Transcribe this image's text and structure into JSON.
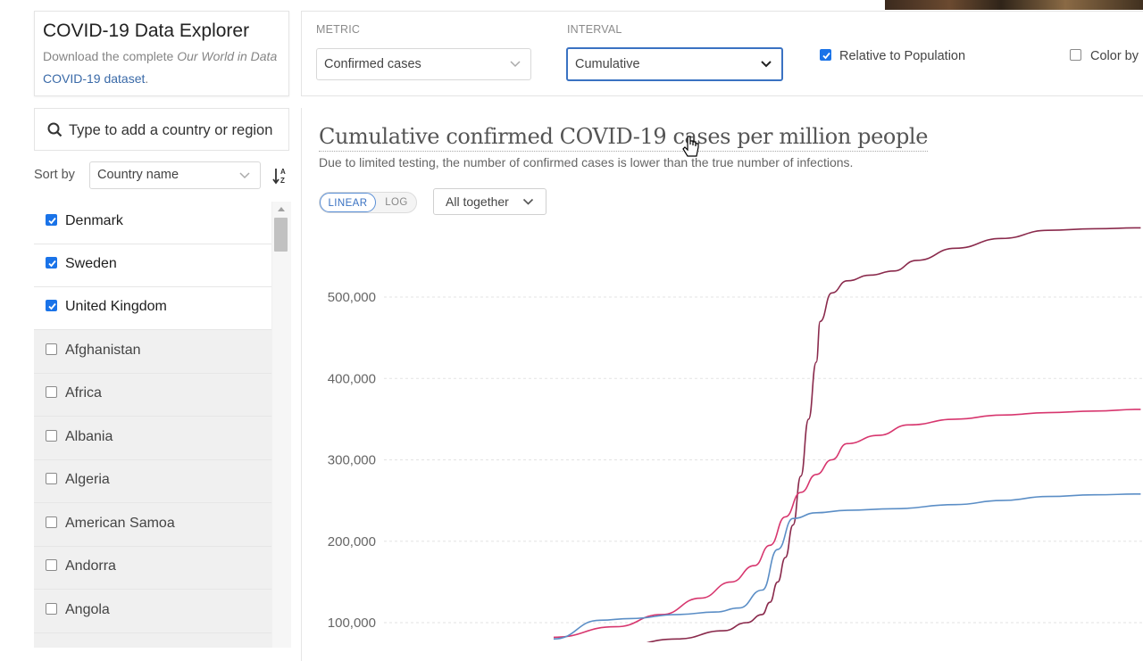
{
  "app": {
    "title": "COVID-19 Data Explorer",
    "subtitle_prefix": "Download the complete ",
    "subtitle_em": "Our World in Data",
    "subtitle_link": "COVID-19 dataset",
    "subtitle_suffix": "."
  },
  "controls": {
    "metric_label": "METRIC",
    "metric_value": "Confirmed cases",
    "interval_label": "INTERVAL",
    "interval_value": "Cumulative",
    "relative_label": "Relative to Population",
    "relative_checked": true,
    "color_label": "Color by",
    "color_checked": false
  },
  "search": {
    "placeholder": "Type to add a country or region"
  },
  "sort": {
    "label": "Sort by",
    "value": "Country name"
  },
  "countries": [
    {
      "name": "Denmark",
      "checked": true
    },
    {
      "name": "Sweden",
      "checked": true
    },
    {
      "name": "United Kingdom",
      "checked": true
    },
    {
      "name": "Afghanistan",
      "checked": false
    },
    {
      "name": "Africa",
      "checked": false
    },
    {
      "name": "Albania",
      "checked": false
    },
    {
      "name": "Algeria",
      "checked": false
    },
    {
      "name": "American Samoa",
      "checked": false
    },
    {
      "name": "Andorra",
      "checked": false
    },
    {
      "name": "Angola",
      "checked": false
    }
  ],
  "chart": {
    "title": "Cumulative confirmed COVID-19 cases per million people",
    "subtitle": "Due to limited testing, the number of confirmed cases is lower than the true number of infections.",
    "scale_linear": "LINEAR",
    "scale_log": "LOG",
    "facet": "All together"
  },
  "chart_data": {
    "type": "line",
    "title": "Cumulative confirmed COVID-19 cases per million people",
    "yticks": [
      "100,000",
      "200,000",
      "300,000",
      "400,000",
      "500,000"
    ],
    "ytick_values": [
      100000,
      200000,
      300000,
      400000,
      500000
    ],
    "grid": true,
    "series": [
      {
        "color": "#8a2a4c",
        "values": [
          [
            0.0,
            62000
          ],
          [
            0.08,
            70000
          ],
          [
            0.16,
            80000
          ],
          [
            0.22,
            90000
          ],
          [
            0.25,
            100000
          ],
          [
            0.27,
            110000
          ],
          [
            0.28,
            125000
          ],
          [
            0.29,
            150000
          ],
          [
            0.3,
            180000
          ],
          [
            0.31,
            220000
          ],
          [
            0.32,
            280000
          ],
          [
            0.33,
            350000
          ],
          [
            0.34,
            420000
          ],
          [
            0.345,
            470000
          ],
          [
            0.36,
            505000
          ],
          [
            0.38,
            520000
          ],
          [
            0.41,
            527000
          ],
          [
            0.44,
            532000
          ],
          [
            0.47,
            545000
          ],
          [
            0.52,
            560000
          ],
          [
            0.58,
            572000
          ],
          [
            0.64,
            582000
          ],
          [
            0.7,
            584000
          ],
          [
            0.76,
            585000
          ]
        ]
      },
      {
        "color": "#d7366e",
        "values": [
          [
            0.0,
            82000
          ],
          [
            0.08,
            95000
          ],
          [
            0.14,
            110000
          ],
          [
            0.19,
            130000
          ],
          [
            0.23,
            150000
          ],
          [
            0.26,
            170000
          ],
          [
            0.28,
            195000
          ],
          [
            0.3,
            230000
          ],
          [
            0.32,
            260000
          ],
          [
            0.34,
            282000
          ],
          [
            0.36,
            300000
          ],
          [
            0.38,
            320000
          ],
          [
            0.42,
            330000
          ],
          [
            0.46,
            343000
          ],
          [
            0.52,
            350000
          ],
          [
            0.58,
            355000
          ],
          [
            0.64,
            358000
          ],
          [
            0.7,
            360000
          ],
          [
            0.76,
            362000
          ]
        ]
      },
      {
        "color": "#5b8ec6",
        "values": [
          [
            0.0,
            80000
          ],
          [
            0.06,
            103000
          ],
          [
            0.1,
            105000
          ],
          [
            0.16,
            110000
          ],
          [
            0.21,
            113000
          ],
          [
            0.24,
            118000
          ],
          [
            0.27,
            140000
          ],
          [
            0.29,
            190000
          ],
          [
            0.31,
            228000
          ],
          [
            0.34,
            235000
          ],
          [
            0.38,
            238000
          ],
          [
            0.44,
            240000
          ],
          [
            0.52,
            245000
          ],
          [
            0.58,
            250000
          ],
          [
            0.64,
            255000
          ],
          [
            0.7,
            257000
          ],
          [
            0.76,
            258000
          ]
        ]
      }
    ]
  }
}
